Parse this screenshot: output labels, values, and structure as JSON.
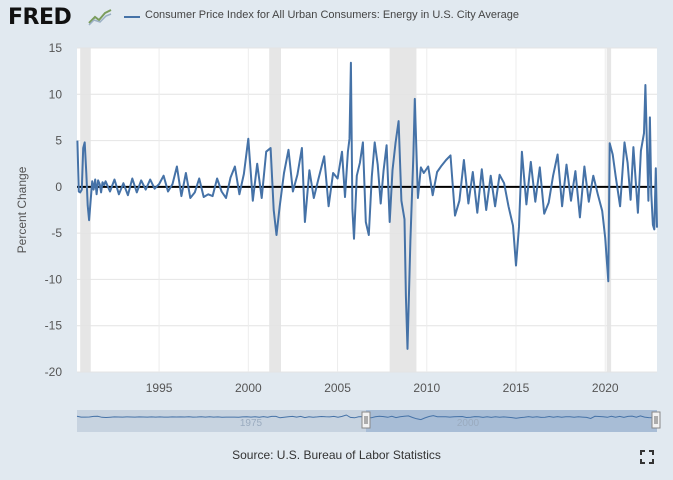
{
  "header": {
    "logo_text": "FRED",
    "legend_label": "Consumer Price Index for All Urban Consumers: Energy in U.S. City Average",
    "series_color": "#4572a7"
  },
  "source": "Source: U.S. Bureau of Labor Statistics",
  "navigator": {
    "labels": [
      "1975",
      "2000"
    ],
    "selected_range": [
      "1990",
      "2023"
    ]
  },
  "chart_data": {
    "type": "line",
    "title": "Consumer Price Index for All Urban Consumers: Energy in U.S. City Average",
    "ylabel": "Percent Change",
    "xlabel": "",
    "xlim": [
      1990.4,
      2022.9
    ],
    "ylim": [
      -20,
      15
    ],
    "yticks": [
      15,
      10,
      5,
      0,
      -5,
      -10,
      -15,
      -20
    ],
    "xticks": [
      1995,
      2000,
      2005,
      2010,
      2015,
      2020
    ],
    "grid": true,
    "recessions": [
      [
        1990.58,
        1991.17
      ],
      [
        2001.17,
        2001.83
      ],
      [
        2007.92,
        2009.42
      ],
      [
        2020.08,
        2020.33
      ]
    ],
    "series": [
      {
        "name": "Consumer Price Index for All Urban Consumers: Energy in U.S. City Average",
        "x": [
          1990.42,
          1990.5,
          1990.58,
          1990.67,
          1990.75,
          1990.83,
          1990.92,
          1991.0,
          1991.08,
          1991.17,
          1991.25,
          1991.33,
          1991.42,
          1991.5,
          1991.58,
          1991.67,
          1991.75,
          1991.83,
          1991.92,
          1992.0,
          1992.25,
          1992.5,
          1992.75,
          1993.0,
          1993.25,
          1993.5,
          1993.75,
          1994.0,
          1994.25,
          1994.5,
          1994.75,
          1995.0,
          1995.25,
          1995.5,
          1995.75,
          1996.0,
          1996.25,
          1996.5,
          1996.75,
          1997.0,
          1997.25,
          1997.5,
          1997.75,
          1998.0,
          1998.25,
          1998.5,
          1998.75,
          1999.0,
          1999.25,
          1999.5,
          1999.75,
          2000.0,
          2000.25,
          2000.5,
          2000.75,
          2001.0,
          2001.25,
          2001.42,
          2001.58,
          2001.75,
          2002.0,
          2002.25,
          2002.5,
          2002.75,
          2003.0,
          2003.17,
          2003.42,
          2003.67,
          2003.92,
          2004.25,
          2004.5,
          2004.75,
          2005.0,
          2005.25,
          2005.42,
          2005.58,
          2005.67,
          2005.75,
          2005.83,
          2005.92,
          2006.08,
          2006.25,
          2006.42,
          2006.58,
          2006.75,
          2006.92,
          2007.08,
          2007.25,
          2007.42,
          2007.58,
          2007.75,
          2007.92,
          2008.08,
          2008.25,
          2008.42,
          2008.58,
          2008.75,
          2008.83,
          2008.92,
          2009.08,
          2009.25,
          2009.33,
          2009.5,
          2009.67,
          2009.83,
          2010.08,
          2010.33,
          2010.58,
          2010.83,
          2011.08,
          2011.33,
          2011.58,
          2011.83,
          2012.08,
          2012.33,
          2012.58,
          2012.83,
          2013.08,
          2013.33,
          2013.58,
          2013.83,
          2014.08,
          2014.33,
          2014.58,
          2014.83,
          2015.0,
          2015.17,
          2015.33,
          2015.58,
          2015.83,
          2016.08,
          2016.33,
          2016.58,
          2016.83,
          2017.08,
          2017.33,
          2017.58,
          2017.83,
          2018.08,
          2018.33,
          2018.58,
          2018.83,
          2019.08,
          2019.33,
          2019.58,
          2019.83,
          2020.0,
          2020.17,
          2020.25,
          2020.42,
          2020.58,
          2020.83,
          2021.08,
          2021.25,
          2021.42,
          2021.58,
          2021.83,
          2022.0,
          2022.17,
          2022.25,
          2022.42,
          2022.5,
          2022.58,
          2022.67,
          2022.75,
          2022.83,
          2022.9
        ],
        "values": [
          5.0,
          -0.5,
          -0.6,
          -0.3,
          4.2,
          4.8,
          1.5,
          -2.0,
          -3.6,
          -1.4,
          0.6,
          -0.3,
          0.8,
          -0.8,
          0.7,
          0.3,
          -0.6,
          0.5,
          0.2,
          0.6,
          -0.5,
          0.8,
          -0.8,
          0.4,
          -0.9,
          0.9,
          -0.6,
          0.7,
          -0.3,
          0.8,
          -0.2,
          0.3,
          1.2,
          -0.5,
          0.3,
          2.2,
          -1.0,
          1.5,
          -1.2,
          -0.6,
          0.9,
          -1.1,
          -0.8,
          -1.0,
          0.9,
          -0.5,
          -1.2,
          1.0,
          2.2,
          -0.8,
          1.4,
          5.2,
          -1.5,
          2.5,
          -1.2,
          3.8,
          4.2,
          -2.5,
          -5.2,
          -2.2,
          1.5,
          4.0,
          -0.5,
          1.3,
          4.2,
          -3.8,
          1.8,
          -1.2,
          0.8,
          3.3,
          -2.1,
          1.5,
          0.9,
          3.8,
          -1.1,
          3.8,
          5.2,
          13.4,
          -2.4,
          -5.6,
          1.2,
          2.6,
          4.8,
          -3.8,
          -5.2,
          1.1,
          4.8,
          2.4,
          -1.8,
          1.8,
          4.5,
          -3.8,
          1.8,
          4.8,
          7.1,
          -1.5,
          -3.5,
          -11.8,
          -17.5,
          -5.8,
          3.5,
          9.5,
          -1.2,
          2.1,
          1.5,
          2.2,
          -0.9,
          1.6,
          2.3,
          2.9,
          3.4,
          -3.1,
          -1.5,
          2.9,
          -1.8,
          1.6,
          -2.8,
          1.9,
          -2.5,
          1.2,
          -2.1,
          1.3,
          0.4,
          -2.1,
          -4.2,
          -8.5,
          -4.3,
          3.8,
          -1.9,
          2.7,
          -1.6,
          2.1,
          -2.9,
          -1.7,
          1.2,
          3.5,
          -2.1,
          2.4,
          -1.5,
          1.7,
          -3.3,
          2.2,
          -1.6,
          1.2,
          -0.8,
          -2.6,
          -5.5,
          -10.2,
          4.7,
          3.5,
          1.2,
          -2.1,
          4.8,
          2.6,
          -1.4,
          4.3,
          -2.8,
          3.9,
          5.8,
          11.0,
          -1.5,
          7.5,
          -0.8,
          -4.1,
          -4.6,
          2.0,
          -4.4
        ]
      }
    ]
  }
}
